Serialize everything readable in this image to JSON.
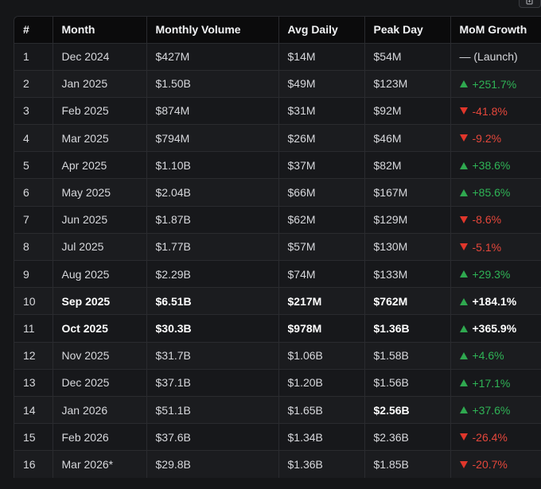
{
  "table": {
    "headers": [
      "#",
      "Month",
      "Monthly Volume",
      "Avg Daily",
      "Peak Day",
      "MoM Growth"
    ],
    "rows": [
      {
        "n": "1",
        "month": "Dec 2024",
        "volume": "$427M",
        "avg": "$14M",
        "peak": "$54M",
        "growth": "— (Launch)",
        "dir": "none"
      },
      {
        "n": "2",
        "month": "Jan 2025",
        "volume": "$1.50B",
        "avg": "$49M",
        "peak": "$123M",
        "growth": "+251.7%",
        "dir": "up"
      },
      {
        "n": "3",
        "month": "Feb 2025",
        "volume": "$874M",
        "avg": "$31M",
        "peak": "$92M",
        "growth": "-41.8%",
        "dir": "down"
      },
      {
        "n": "4",
        "month": "Mar 2025",
        "volume": "$794M",
        "avg": "$26M",
        "peak": "$46M",
        "growth": "-9.2%",
        "dir": "down"
      },
      {
        "n": "5",
        "month": "Apr 2025",
        "volume": "$1.10B",
        "avg": "$37M",
        "peak": "$82M",
        "growth": "+38.6%",
        "dir": "up"
      },
      {
        "n": "6",
        "month": "May 2025",
        "volume": "$2.04B",
        "avg": "$66M",
        "peak": "$167M",
        "growth": "+85.6%",
        "dir": "up"
      },
      {
        "n": "7",
        "month": "Jun 2025",
        "volume": "$1.87B",
        "avg": "$62M",
        "peak": "$129M",
        "growth": "-8.6%",
        "dir": "down"
      },
      {
        "n": "8",
        "month": "Jul 2025",
        "volume": "$1.77B",
        "avg": "$57M",
        "peak": "$130M",
        "growth": "-5.1%",
        "dir": "down"
      },
      {
        "n": "9",
        "month": "Aug 2025",
        "volume": "$2.29B",
        "avg": "$74M",
        "peak": "$133M",
        "growth": "+29.3%",
        "dir": "up"
      },
      {
        "n": "10",
        "month": "Sep 2025",
        "volume": "$6.51B",
        "avg": "$217M",
        "peak": "$762M",
        "growth": "+184.1%",
        "dir": "up"
      },
      {
        "n": "11",
        "month": "Oct 2025",
        "volume": "$30.3B",
        "avg": "$978M",
        "peak": "$1.36B",
        "growth": "+365.9%",
        "dir": "up"
      },
      {
        "n": "12",
        "month": "Nov 2025",
        "volume": "$31.7B",
        "avg": "$1.06B",
        "peak": "$1.58B",
        "growth": "+4.6%",
        "dir": "up"
      },
      {
        "n": "13",
        "month": "Dec 2025",
        "volume": "$37.1B",
        "avg": "$1.20B",
        "peak": "$1.56B",
        "growth": "+17.1%",
        "dir": "up"
      },
      {
        "n": "14",
        "month": "Jan 2026",
        "volume": "$51.1B",
        "avg": "$1.65B",
        "peak": "$2.56B",
        "growth": "+37.6%",
        "dir": "up"
      },
      {
        "n": "15",
        "month": "Feb 2026",
        "volume": "$37.6B",
        "avg": "$1.34B",
        "peak": "$2.36B",
        "growth": "-26.4%",
        "dir": "down"
      },
      {
        "n": "16",
        "month": "Mar 2026*",
        "volume": "$29.8B",
        "avg": "$1.36B",
        "peak": "$1.85B",
        "growth": "-20.7%",
        "dir": "down"
      }
    ]
  },
  "colors": {
    "up": "#2fb456",
    "down": "#e5473b",
    "header_bg": "#0b0b0c",
    "page_bg": "#151618"
  },
  "icons": {
    "copy": "copy-icon"
  }
}
